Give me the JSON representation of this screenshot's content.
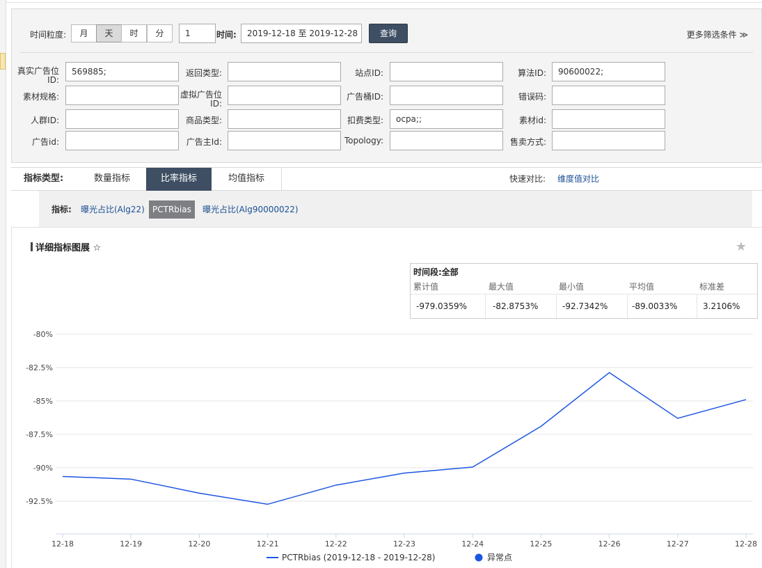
{
  "filters": {
    "granularity_label": "时间粒度:",
    "granularity_options": [
      "月",
      "天",
      "时",
      "分"
    ],
    "granularity_selected": "天",
    "count_value": "1",
    "time_label": "时间:",
    "date_range": "2019-12-18 至 2019-12-28",
    "query_label": "查询",
    "more_label": "更多筛选条件",
    "fields": [
      {
        "label": "真实广告位ID:",
        "value": "569885;"
      },
      {
        "label": "返回类型:",
        "value": ""
      },
      {
        "label": "站点ID:",
        "value": ""
      },
      {
        "label": "算法ID:",
        "value": "90600022;"
      },
      {
        "label": "素材规格:",
        "value": ""
      },
      {
        "label": "虚拟广告位ID:",
        "value": ""
      },
      {
        "label": "广告桶ID:",
        "value": ""
      },
      {
        "label": "错误码:",
        "value": ""
      },
      {
        "label": "人群ID:",
        "value": ""
      },
      {
        "label": "商品类型:",
        "value": ""
      },
      {
        "label": "扣费类型:",
        "value": "ocpa;;"
      },
      {
        "label": "素材id:",
        "value": ""
      },
      {
        "label": "广告id:",
        "value": ""
      },
      {
        "label": "广告主Id:",
        "value": ""
      },
      {
        "label": "Topology:",
        "value": ""
      },
      {
        "label": "售卖方式:",
        "value": ""
      }
    ]
  },
  "metric_types": {
    "label": "指标类型:",
    "tabs": [
      "数量指标",
      "比率指标",
      "均值指标"
    ],
    "active": "比率指标",
    "quick_compare_label": "快速对比:",
    "quick_compare_link": "维度值对比"
  },
  "metrics": {
    "label": "指标:",
    "items": [
      "曝光占比(Alg22)",
      "PCTRbias",
      "曝光占比(Alg90000022)"
    ],
    "active": "PCTRbias"
  },
  "detail": {
    "title": "详细指标图展 ☆",
    "stats_period": "时间段:全部",
    "stats_headers": [
      "累计值",
      "最大值",
      "最小值",
      "平均值",
      "标准差"
    ],
    "stats_values": [
      "-979.0359%",
      "-82.8753%",
      "-92.7342%",
      "-89.0033%",
      "3.2106%"
    ]
  },
  "chart_data": {
    "type": "line",
    "categories": [
      "12-18",
      "12-19",
      "12-20",
      "12-21",
      "12-22",
      "12-23",
      "12-24",
      "12-25",
      "12-26",
      "12-27",
      "12-28"
    ],
    "series": [
      {
        "name": "PCTRbias (2019-12-18 - 2019-12-28)",
        "color": "#1c56e0",
        "values": [
          -90.65,
          -90.85,
          -91.9,
          -92.73,
          -91.3,
          -90.4,
          -89.95,
          -86.9,
          -82.88,
          -86.3,
          -84.9
        ]
      }
    ],
    "anomaly_legend": "异常点",
    "anomaly_color": "#1c56e0",
    "y_ticks": [
      "-80%",
      "-82.5%",
      "-85%",
      "-87.5%",
      "-90%",
      "-92.5%"
    ],
    "y_tick_values": [
      -80,
      -82.5,
      -85,
      -87.5,
      -90,
      -92.5
    ],
    "ylim": [
      -95,
      -80
    ],
    "grid": true,
    "legend_position": "bottom"
  }
}
